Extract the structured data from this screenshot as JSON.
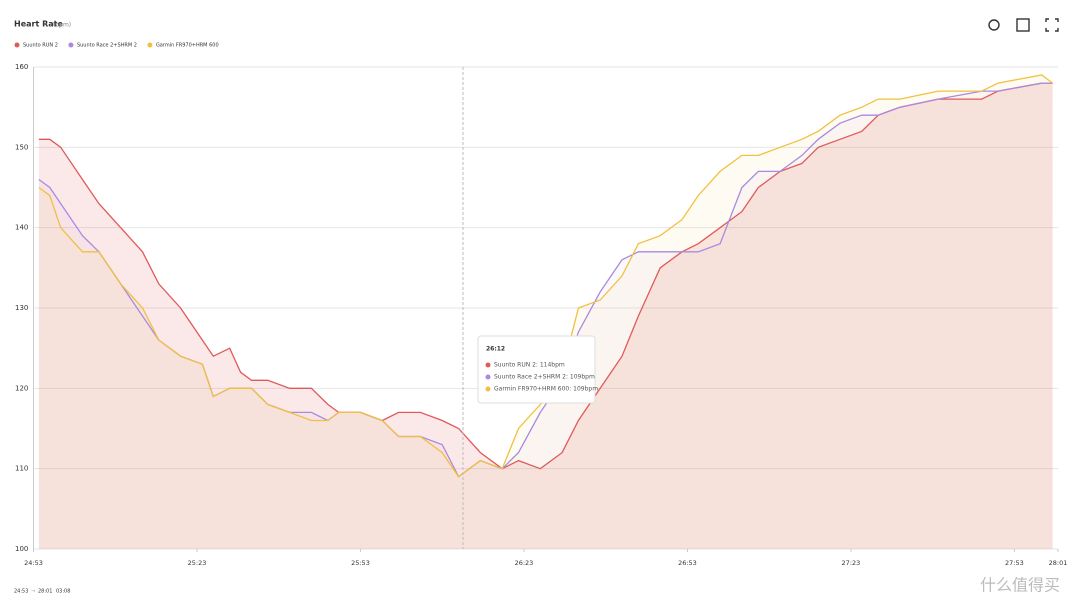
{
  "chart_data": {
    "type": "line",
    "title": "Heart Rate",
    "subtitle": "(bpm)",
    "x": [
      1494,
      1496,
      1498,
      1502,
      1505,
      1509,
      1513,
      1516,
      1520,
      1524,
      1526,
      1529,
      1531,
      1533,
      1536,
      1540,
      1544,
      1547,
      1549,
      1553,
      1557,
      1560,
      1564,
      1568,
      1571,
      1575,
      1579,
      1582,
      1586,
      1590,
      1593,
      1597,
      1601,
      1604,
      1608,
      1612,
      1615,
      1619,
      1623,
      1626,
      1630,
      1634,
      1637,
      1641,
      1645,
      1648,
      1652,
      1659,
      1667,
      1670,
      1678,
      1680
    ],
    "series": [
      {
        "name": "Suunto RUN 2",
        "color": "#e05a5a",
        "values": [
          151,
          151,
          150,
          146,
          143,
          140,
          137,
          133,
          130,
          126,
          124,
          125,
          122,
          121,
          121,
          120,
          120,
          118,
          117,
          117,
          116,
          117,
          117,
          116,
          115,
          112,
          110,
          111,
          110,
          112,
          116,
          120,
          124,
          129,
          135,
          137,
          138,
          140,
          142,
          145,
          147,
          148,
          150,
          151,
          152,
          154,
          155,
          156,
          156,
          157,
          158,
          158
        ]
      },
      {
        "name": "Suunto Race 2+SHRM 2",
        "color": "#a88be0",
        "values": [
          146,
          145,
          143,
          139,
          137,
          133,
          129,
          126,
          124,
          123,
          119,
          120,
          120,
          120,
          118,
          117,
          117,
          116,
          117,
          117,
          116,
          114,
          114,
          113,
          109,
          111,
          110,
          112,
          117,
          121,
          127,
          132,
          136,
          137,
          137,
          137,
          137,
          138,
          145,
          147,
          147,
          149,
          151,
          153,
          154,
          154,
          155,
          156,
          157,
          157,
          158,
          158
        ]
      },
      {
        "name": "Garmin FR970+HRM 600",
        "color": "#f0c040",
        "values": [
          145,
          144,
          140,
          137,
          137,
          133,
          130,
          126,
          124,
          123,
          119,
          120,
          120,
          120,
          118,
          117,
          116,
          116,
          117,
          117,
          116,
          114,
          114,
          112,
          109,
          111,
          110,
          115,
          118,
          122,
          130,
          131,
          134,
          138,
          139,
          141,
          144,
          147,
          149,
          149,
          150,
          151,
          152,
          154,
          155,
          156,
          156,
          157,
          157,
          158,
          159,
          158
        ]
      }
    ],
    "xlim": [
      1493,
      1681
    ],
    "xticks": [
      {
        "value": 1493,
        "label": "24:53"
      },
      {
        "value": 1523,
        "label": "25:23"
      },
      {
        "value": 1553,
        "label": "25:53"
      },
      {
        "value": 1583,
        "label": "26:23"
      },
      {
        "value": 1613,
        "label": "26:53"
      },
      {
        "value": 1643,
        "label": "27:23"
      },
      {
        "value": 1673,
        "label": "27:53"
      },
      {
        "value": 1681,
        "label": "28:01"
      }
    ],
    "ylim": [
      100,
      160
    ],
    "yticks": [
      100,
      110,
      120,
      130,
      140,
      150,
      160
    ],
    "grid": true,
    "legend": "top-left",
    "tooltip": {
      "title": "26:12",
      "items": [
        "Suunto RUN 2: 114bpm",
        "Suunto Race 2+SHRM 2: 109bpm",
        "Garmin FR970+HRM 600: 109bpm"
      ]
    },
    "footer": {
      "start": "24:53",
      "arrow": "→",
      "end": "28:01",
      "duration": "03:08"
    },
    "watermark": "什么值得买"
  }
}
